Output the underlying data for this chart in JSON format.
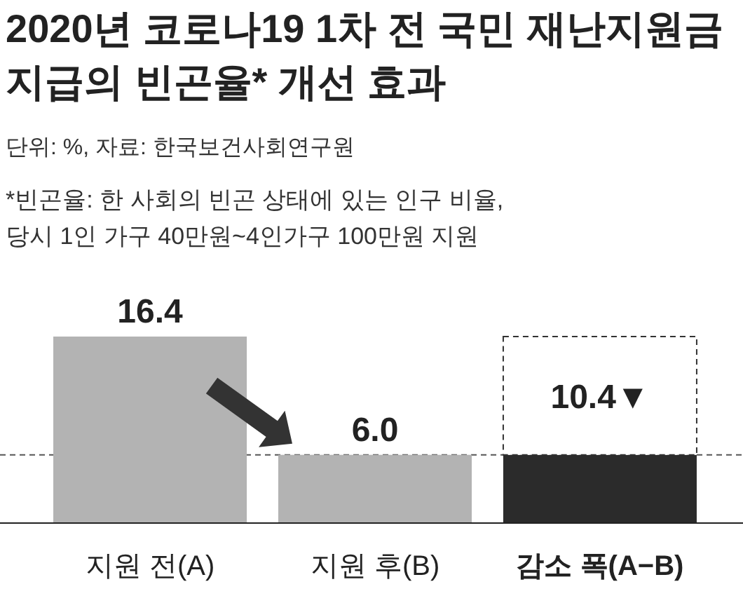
{
  "chart_data": {
    "type": "bar",
    "title": "2020년 코로나19 1차 전 국민 재난지원금 지급의 빈곤율* 개선 효과",
    "subtitle": "단위: %, 자료: 한국보건사회연구원",
    "annotations": [
      "*빈곤율: 한 사회의 빈곤 상태에 있는 인구 비율,",
      "당시 1인 가구 40만원~4인가구 100만원 지원"
    ],
    "categories": [
      "지원 전(A)",
      "지원 후(B)",
      "감소 폭(A−B)"
    ],
    "stacked": true,
    "series": [
      {
        "colors": [
          "#b3b3b3",
          "#b3b3b3",
          "#2b2b2b"
        ],
        "values": [
          16.4,
          6.0,
          6.0
        ],
        "value_labels": [
          "16.4",
          "6.0",
          null
        ]
      },
      {
        "color": "#ffffff",
        "line_style": "dashed",
        "values": [
          null,
          null,
          10.4
        ],
        "value_labels": [
          null,
          null,
          "10.4▼"
        ]
      }
    ],
    "ref_lines": [
      {
        "axis": "y",
        "value": 6.0,
        "line_style": "dashed",
        "color": "#555555"
      }
    ]
  }
}
